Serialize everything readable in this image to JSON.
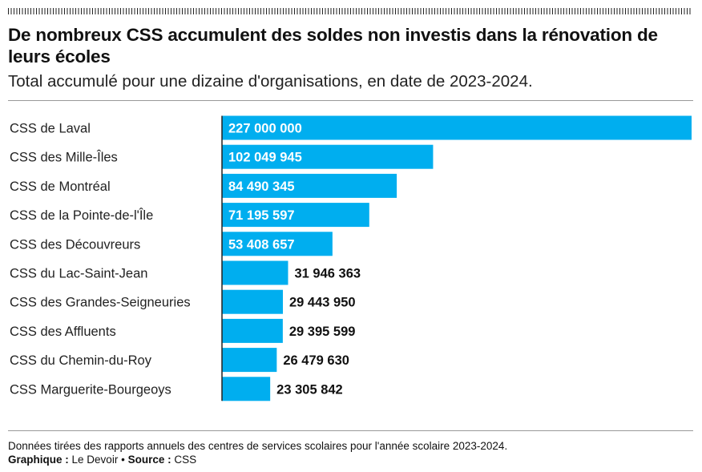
{
  "title": "De nombreux CSS accumulent des soldes non investis dans la rénovation de leurs écoles",
  "subtitle": "Total accumulé pour une dizaine d'organisations, en date de 2023-2024.",
  "footnote": "Données tirées des rapports annuels des centres de services scolaires pour l'année scolaire 2023-2024.",
  "credit": {
    "graphic_label": "Graphique :",
    "graphic_value": "Le Devoir",
    "separator": "•",
    "source_label": "Source :",
    "source_value": "CSS"
  },
  "colors": {
    "bar": "#00aeef",
    "label_inside": "#ffffff",
    "label_outside": "#111111",
    "axis": "#222222"
  },
  "chart_data": {
    "type": "bar",
    "orientation": "horizontal",
    "categories": [
      "CSS de Laval",
      "CSS des Mille-Îles",
      "CSS de Montréal",
      "CSS de la Pointe-de-l'Île",
      "CSS des Découvreurs",
      "CSS du Lac-Saint-Jean",
      "CSS des Grandes-Seigneuries",
      "CSS des Affluents",
      "CSS du Chemin-du-Roy",
      "CSS Marguerite-Bourgeoys"
    ],
    "values": [
      227000000,
      102049945,
      84490345,
      71195597,
      53408657,
      31946363,
      29443950,
      29395599,
      26479630,
      23305842
    ],
    "value_labels": [
      "227 000 000",
      "102 049 945",
      "84 490 345",
      "71 195 597",
      "53 408 657",
      "31 946 363",
      "29 443 950",
      "29 395 599",
      "26 479 630",
      "23 305 842"
    ],
    "xlim": [
      0,
      227000000
    ],
    "grid": false,
    "legend": "none"
  }
}
